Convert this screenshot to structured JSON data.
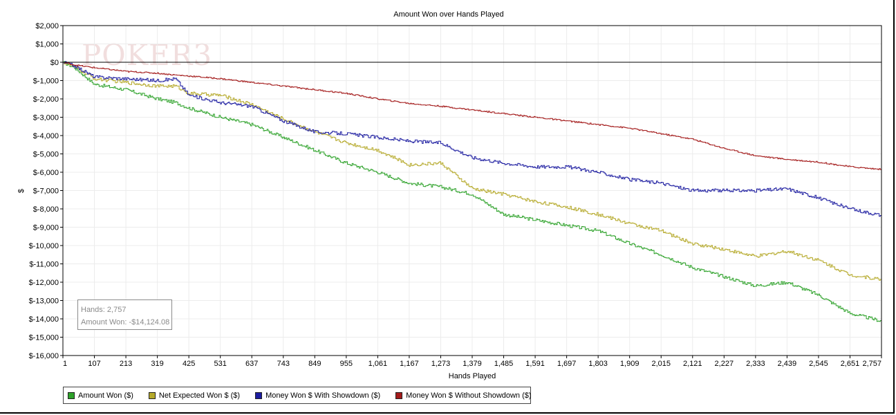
{
  "chart_data": {
    "type": "line",
    "title": "Amount Won over Hands Played",
    "xlabel": "Hands Played",
    "ylabel": "$",
    "xlim": [
      1,
      2757
    ],
    "ylim": [
      -16000,
      2000
    ],
    "x_ticks": [
      "1",
      "107",
      "213",
      "319",
      "425",
      "531",
      "637",
      "743",
      "849",
      "955",
      "1,061",
      "1,167",
      "1,273",
      "1,379",
      "1,485",
      "1,591",
      "1,697",
      "1,803",
      "1,909",
      "2,015",
      "2,121",
      "2,227",
      "2,333",
      "2,439",
      "2,545",
      "2,651",
      "2,757"
    ],
    "x_tick_values": [
      1,
      107,
      213,
      319,
      425,
      531,
      637,
      743,
      849,
      955,
      1061,
      1167,
      1273,
      1379,
      1485,
      1591,
      1697,
      1803,
      1909,
      2015,
      2121,
      2227,
      2333,
      2439,
      2545,
      2651,
      2757
    ],
    "y_ticks": [
      "$2,000",
      "$1,000",
      "$0",
      "$-1,000",
      "$-2,000",
      "$-3,000",
      "$-4,000",
      "$-5,000",
      "$-6,000",
      "$-7,000",
      "$-8,000",
      "$-9,000",
      "$-10,000",
      "$-11,000",
      "$-12,000",
      "$-13,000",
      "$-14,000",
      "$-15,000",
      "$-16,000"
    ],
    "y_tick_values": [
      2000,
      1000,
      0,
      -1000,
      -2000,
      -3000,
      -4000,
      -5000,
      -6000,
      -7000,
      -8000,
      -9000,
      -10000,
      -11000,
      -12000,
      -13000,
      -14000,
      -15000,
      -16000
    ],
    "grid": true,
    "legend_position": "bottom",
    "x": [
      1,
      40,
      107,
      213,
      319,
      380,
      425,
      531,
      637,
      743,
      849,
      955,
      1061,
      1167,
      1273,
      1379,
      1485,
      1591,
      1697,
      1803,
      1909,
      2015,
      2121,
      2227,
      2333,
      2439,
      2545,
      2651,
      2757
    ],
    "series": [
      {
        "name": "Amount Won ($)",
        "color": "#2ea22a",
        "values": [
          0,
          -300,
          -1200,
          -1500,
          -2000,
          -2200,
          -2500,
          -3000,
          -3400,
          -4100,
          -4800,
          -5500,
          -6000,
          -6600,
          -6800,
          -7200,
          -8300,
          -8600,
          -8900,
          -9200,
          -9900,
          -10500,
          -11200,
          -11700,
          -12200,
          -12000,
          -12700,
          -13700,
          -14124
        ]
      },
      {
        "name": "Net Expected Won $ ($)",
        "color": "#b5a92a",
        "values": [
          0,
          -250,
          -900,
          -1100,
          -1300,
          -1300,
          -1700,
          -1800,
          -2300,
          -3100,
          -3800,
          -4400,
          -4800,
          -5600,
          -5500,
          -6900,
          -7200,
          -7600,
          -7900,
          -8300,
          -8800,
          -9200,
          -9900,
          -10200,
          -10600,
          -10300,
          -10800,
          -11600,
          -11850
        ]
      },
      {
        "name": "Money Won $ With Showdown ($)",
        "color": "#1c1ca0",
        "values": [
          0,
          -200,
          -800,
          -900,
          -1000,
          -900,
          -1800,
          -2200,
          -2400,
          -3200,
          -3800,
          -3900,
          -4100,
          -4300,
          -4400,
          -5200,
          -5500,
          -5700,
          -5700,
          -6000,
          -6400,
          -6600,
          -7000,
          -7000,
          -7000,
          -6900,
          -7400,
          -8000,
          -8350
        ]
      },
      {
        "name": "Money Won $ Without Showdown ($)",
        "color": "#a31a1a",
        "values": [
          0,
          -150,
          -300,
          -500,
          -600,
          -700,
          -750,
          -900,
          -1100,
          -1300,
          -1500,
          -1700,
          -2000,
          -2250,
          -2400,
          -2600,
          -2800,
          -3000,
          -3200,
          -3400,
          -3600,
          -3900,
          -4200,
          -4700,
          -5100,
          -5300,
          -5450,
          -5700,
          -5850
        ]
      }
    ]
  },
  "tooltip": {
    "hands": "Hands: 2,757",
    "amount_won": "Amount Won: -$14,124.08"
  },
  "watermark": "POKER3"
}
